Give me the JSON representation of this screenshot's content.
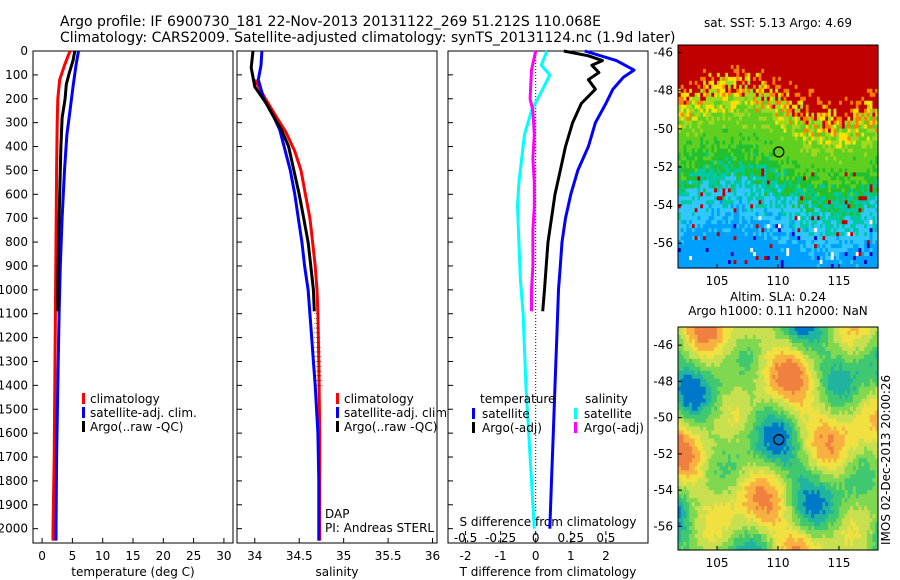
{
  "header": {
    "line1": "Argo profile: IF 6900730_181 22-Nov-2013 20131122_269 51.212S 110.068E",
    "line2": "Climatology: CARS2009. Satellite-adjusted climatology: synTS_20131124.nc (1.9d later)"
  },
  "colors": {
    "climatology": "#ff0000",
    "satellite": "#0000ff",
    "argo": "#000000",
    "sat_salinity": "#00ffff",
    "argo_salinity_adj": "#ff00ff"
  },
  "chart_data": [
    {
      "type": "line",
      "id": "temperature",
      "xlabel": "temperature (deg C)",
      "xlim": [
        -1.5,
        31.5
      ],
      "xticks": [
        0,
        5,
        10,
        15,
        20,
        25,
        30
      ],
      "ylim": [
        2060,
        0
      ],
      "yticks": [
        0,
        100,
        200,
        300,
        400,
        500,
        600,
        700,
        800,
        900,
        1000,
        1100,
        1200,
        1300,
        1400,
        1500,
        1600,
        1700,
        1800,
        1900,
        2000
      ],
      "legend": [
        "climatology",
        "satellite-adj. clim.",
        "Argo(..raw -QC)"
      ],
      "series": [
        {
          "name": "climatology",
          "color": "#ff0000",
          "points": [
            [
              4.6,
              0
            ],
            [
              3.7,
              60
            ],
            [
              2.9,
              120
            ],
            [
              2.6,
              200
            ],
            [
              2.5,
              300
            ],
            [
              2.4,
              500
            ],
            [
              2.3,
              800
            ],
            [
              2.2,
              1100
            ],
            [
              2.1,
              1400
            ],
            [
              2.0,
              1700
            ],
            [
              1.8,
              2000
            ],
            [
              1.8,
              2050
            ]
          ]
        },
        {
          "name": "satellite-adj. clim.",
          "color": "#0000ff",
          "points": [
            [
              6.0,
              0
            ],
            [
              5.6,
              60
            ],
            [
              5.1,
              150
            ],
            [
              4.6,
              250
            ],
            [
              4.1,
              350
            ],
            [
              3.7,
              500
            ],
            [
              3.3,
              700
            ],
            [
              3.0,
              900
            ],
            [
              2.8,
              1100
            ],
            [
              2.6,
              1400
            ],
            [
              2.4,
              1700
            ],
            [
              2.3,
              2000
            ],
            [
              2.3,
              2050
            ]
          ]
        },
        {
          "name": "Argo(..raw -QC)",
          "color": "#000000",
          "points": [
            [
              5.4,
              0
            ],
            [
              5.1,
              40
            ],
            [
              4.5,
              90
            ],
            [
              4.0,
              140
            ],
            [
              3.8,
              200
            ],
            [
              3.3,
              280
            ],
            [
              3.1,
              400
            ],
            [
              2.9,
              600
            ],
            [
              2.7,
              800
            ],
            [
              2.6,
              1000
            ],
            [
              2.6,
              1090
            ]
          ]
        }
      ]
    },
    {
      "type": "line",
      "id": "salinity",
      "xlabel": "salinity",
      "xlim": [
        33.8,
        36.05
      ],
      "xticks": [
        34,
        34.5,
        35,
        35.5,
        36
      ],
      "ylim": [
        2060,
        0
      ],
      "legend": [
        "climatology",
        "satellite-adj. clim.",
        "Argo(..raw -QC)"
      ],
      "annotations": [
        "DAP",
        "PI: Andreas STERL"
      ],
      "series": [
        {
          "name": "climatology",
          "color": "#ff0000",
          "points": [
            [
              34.0,
              120
            ],
            [
              34.12,
              200
            ],
            [
              34.25,
              280
            ],
            [
              34.35,
              340
            ],
            [
              34.45,
              420
            ],
            [
              34.52,
              500
            ],
            [
              34.57,
              600
            ],
            [
              34.62,
              700
            ],
            [
              34.65,
              800
            ],
            [
              34.68,
              900
            ],
            [
              34.7,
              1000
            ],
            [
              34.71,
              1100
            ],
            [
              34.72,
              1300
            ],
            [
              34.73,
              1600
            ],
            [
              34.73,
              2050
            ]
          ]
        },
        {
          "name": "satellite-adj. clim.",
          "color": "#0000ff",
          "points": [
            [
              34.08,
              0
            ],
            [
              34.07,
              60
            ],
            [
              34.04,
              120
            ],
            [
              34.1,
              200
            ],
            [
              34.22,
              280
            ],
            [
              34.28,
              330
            ],
            [
              34.33,
              400
            ],
            [
              34.4,
              500
            ],
            [
              34.45,
              600
            ],
            [
              34.49,
              700
            ],
            [
              34.53,
              800
            ],
            [
              34.56,
              900
            ],
            [
              34.6,
              1000
            ],
            [
              34.62,
              1100
            ],
            [
              34.64,
              1200
            ],
            [
              34.66,
              1300
            ],
            [
              34.68,
              1400
            ],
            [
              34.71,
              1600
            ],
            [
              34.72,
              1800
            ],
            [
              34.72,
              2000
            ],
            [
              34.72,
              2050
            ]
          ]
        },
        {
          "name": "Argo(..raw -QC)",
          "color": "#000000",
          "points": [
            [
              33.98,
              0
            ],
            [
              33.96,
              70
            ],
            [
              34.0,
              150
            ],
            [
              34.13,
              220
            ],
            [
              34.22,
              280
            ],
            [
              34.3,
              330
            ],
            [
              34.38,
              400
            ],
            [
              34.44,
              500
            ],
            [
              34.5,
              600
            ],
            [
              34.55,
              700
            ],
            [
              34.6,
              800
            ],
            [
              34.63,
              900
            ],
            [
              34.66,
              1000
            ],
            [
              34.67,
              1090
            ]
          ]
        }
      ]
    },
    {
      "type": "line",
      "id": "difference",
      "xlabel": "T difference from climatology",
      "xlabel_top": "S difference from climatology",
      "xlim": [
        -2.5,
        3.2
      ],
      "xticks": [
        -2,
        -1,
        0,
        1,
        2
      ],
      "xlim_top": [
        -0.625,
        0.8
      ],
      "xticks_top": [
        -0.5,
        -0.25,
        0,
        0.25,
        0.5
      ],
      "xticklabels_top": [
        "-0.5",
        "-0.25",
        "0",
        "0.25",
        "0.5"
      ],
      "ylim": [
        2060,
        0
      ],
      "legend_titles": [
        "temperature",
        "salinity"
      ],
      "legend": [
        "satellite",
        "Argo(-adj)",
        "satellite",
        "Argo(-adj)"
      ],
      "series": [
        {
          "name": "satellite",
          "color": "#0000ff",
          "points": [
            [
              1.4,
              0
            ],
            [
              2.3,
              40
            ],
            [
              2.8,
              80
            ],
            [
              2.5,
              110
            ],
            [
              2.2,
              160
            ],
            [
              2.0,
              220
            ],
            [
              1.7,
              300
            ],
            [
              1.5,
              400
            ],
            [
              1.2,
              500
            ],
            [
              1.0,
              600
            ],
            [
              0.85,
              700
            ],
            [
              0.75,
              800
            ],
            [
              0.7,
              900
            ],
            [
              0.65,
              1000
            ],
            [
              0.6,
              1200
            ],
            [
              0.55,
              1400
            ],
            [
              0.5,
              1600
            ],
            [
              0.45,
              1800
            ],
            [
              0.4,
              2000
            ]
          ]
        },
        {
          "name": "Argo(-adj)",
          "color": "#000000",
          "points": [
            [
              0.8,
              0
            ],
            [
              1.5,
              20
            ],
            [
              1.9,
              40
            ],
            [
              1.6,
              60
            ],
            [
              1.8,
              90
            ],
            [
              1.5,
              120
            ],
            [
              1.7,
              160
            ],
            [
              1.3,
              220
            ],
            [
              1.05,
              300
            ],
            [
              0.85,
              400
            ],
            [
              0.7,
              500
            ],
            [
              0.55,
              600
            ],
            [
              0.45,
              700
            ],
            [
              0.35,
              800
            ],
            [
              0.3,
              900
            ],
            [
              0.25,
              1000
            ],
            [
              0.2,
              1090
            ]
          ]
        },
        {
          "name": "satellite",
          "color": "#00ffff",
          "axis": "top",
          "points": [
            [
              0.08,
              0
            ],
            [
              0.04,
              60
            ],
            [
              0.1,
              100
            ],
            [
              0.05,
              160
            ],
            [
              -0.03,
              250
            ],
            [
              -0.08,
              350
            ],
            [
              -0.1,
              450
            ],
            [
              -0.12,
              550
            ],
            [
              -0.13,
              650
            ],
            [
              -0.12,
              800
            ],
            [
              -0.11,
              950
            ],
            [
              -0.09,
              1100
            ],
            [
              -0.08,
              1250
            ],
            [
              -0.07,
              1400
            ],
            [
              -0.05,
              1600
            ],
            [
              -0.03,
              1800
            ],
            [
              -0.01,
              2000
            ]
          ]
        },
        {
          "name": "Argo(-adj)",
          "color": "#ff00ff",
          "axis": "top",
          "points": [
            [
              0.0,
              0
            ],
            [
              -0.03,
              80
            ],
            [
              -0.04,
              200
            ],
            [
              -0.02,
              250
            ],
            [
              -0.01,
              350
            ],
            [
              -0.02,
              450
            ],
            [
              -0.01,
              550
            ],
            [
              -0.01,
              650
            ],
            [
              -0.02,
              750
            ],
            [
              -0.02,
              900
            ],
            [
              -0.03,
              1000
            ],
            [
              -0.03,
              1090
            ]
          ]
        }
      ]
    },
    {
      "type": "heatmap",
      "id": "sst_map",
      "title": "sat. SST: 5.13 Argo: 4.69",
      "xlim": [
        101.8,
        118.2
      ],
      "ylim": [
        -57.3,
        -45.6
      ],
      "xticks": [
        105,
        110,
        115
      ],
      "yticks": [
        -46,
        -48,
        -50,
        -52,
        -54,
        -56
      ],
      "marker": [
        110.068,
        -51.212
      ],
      "palette": [
        "#0000c8",
        "#00a0ff",
        "#30c8ff",
        "#00c8a0",
        "#20c030",
        "#60d020",
        "#a0d820",
        "#ffe000",
        "#ff8000",
        "#c00000",
        "#ffffff"
      ]
    },
    {
      "type": "heatmap",
      "id": "sla_map",
      "title": "Altim. SLA: 0.24",
      "subtitle": "Argo h1000: 0.11 h2000: NaN",
      "xlim": [
        101.8,
        118.2
      ],
      "ylim": [
        -57.3,
        -45.0
      ],
      "xticks": [
        105,
        110,
        115
      ],
      "yticks": [
        -46,
        -48,
        -50,
        -52,
        -54,
        -56
      ],
      "marker": [
        110.068,
        -51.212
      ],
      "side_label": "IMOS 02-Dec-2013 20:00:26",
      "palette": [
        "#0078c8",
        "#20b4a0",
        "#40c870",
        "#80d850",
        "#c8e050",
        "#f0e040",
        "#f8b040",
        "#f08040"
      ]
    }
  ]
}
